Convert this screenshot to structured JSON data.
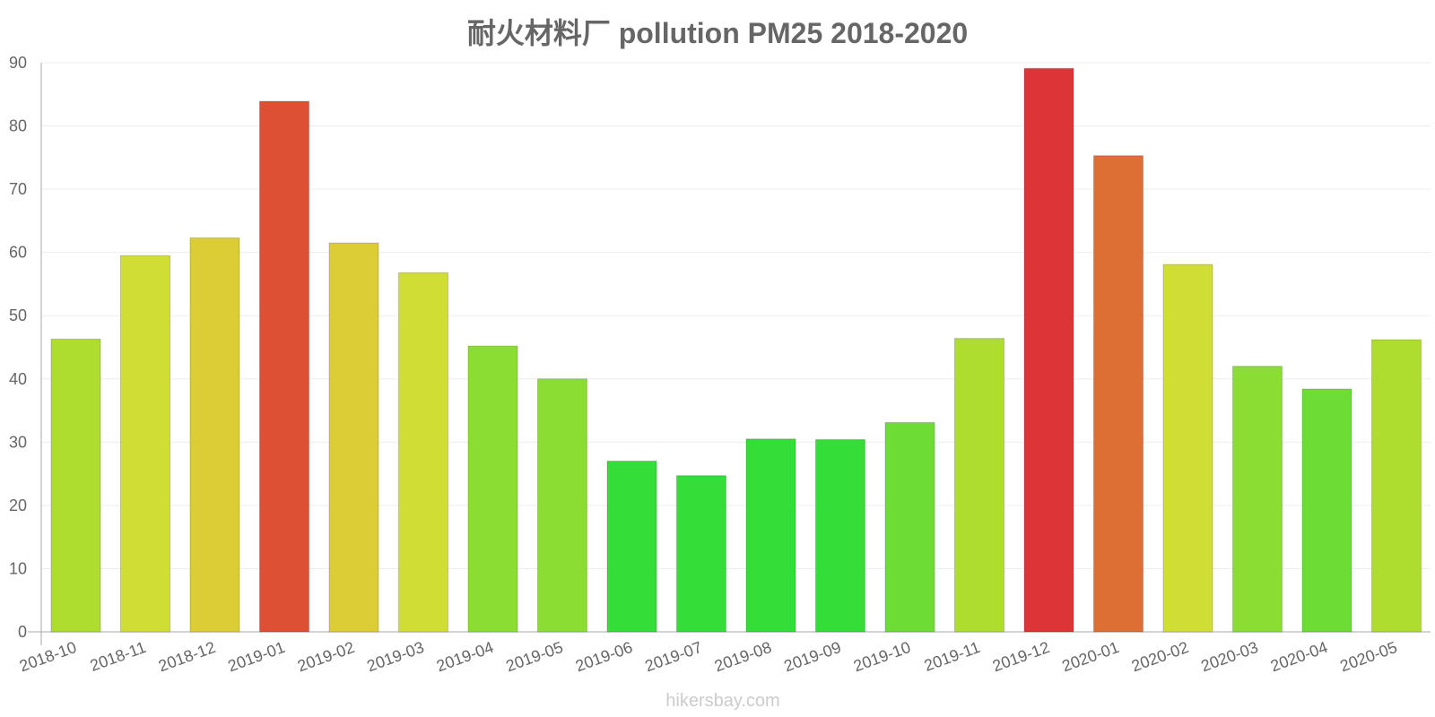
{
  "chart_data": {
    "type": "bar",
    "title": "耐火材料厂 pollution PM25 2018-2020",
    "xlabel": "",
    "ylabel": "",
    "ylim": [
      0,
      90
    ],
    "yticks": [
      0,
      10,
      20,
      30,
      40,
      50,
      60,
      70,
      80,
      90
    ],
    "grid": true,
    "categories": [
      "2018-10",
      "2018-11",
      "2018-12",
      "2019-01",
      "2019-02",
      "2019-03",
      "2019-04",
      "2019-05",
      "2019-06",
      "2019-07",
      "2019-08",
      "2019-09",
      "2019-10",
      "2019-11",
      "2019-12",
      "2020-01",
      "2020-02",
      "2020-03",
      "2020-04",
      "2020-05"
    ],
    "values": [
      46.3,
      59.5,
      62.3,
      83.9,
      61.5,
      56.8,
      45.2,
      40.0,
      27.0,
      24.7,
      30.5,
      30.4,
      33.1,
      46.4,
      89.1,
      75.3,
      58.1,
      42.0,
      38.4,
      46.2
    ],
    "colors": [
      "#aedc2f",
      "#cfdd35",
      "#dccc35",
      "#dd5034",
      "#dccc35",
      "#cfdd35",
      "#8cdd33",
      "#8cdd33",
      "#34dd37",
      "#34dd37",
      "#34dd37",
      "#34dd37",
      "#6ddd35",
      "#aedc2f",
      "#dc3437",
      "#dd6f34",
      "#cfdd35",
      "#8cdd33",
      "#6ddd35",
      "#aedc2f"
    ]
  },
  "watermark": "hikersbay.com"
}
